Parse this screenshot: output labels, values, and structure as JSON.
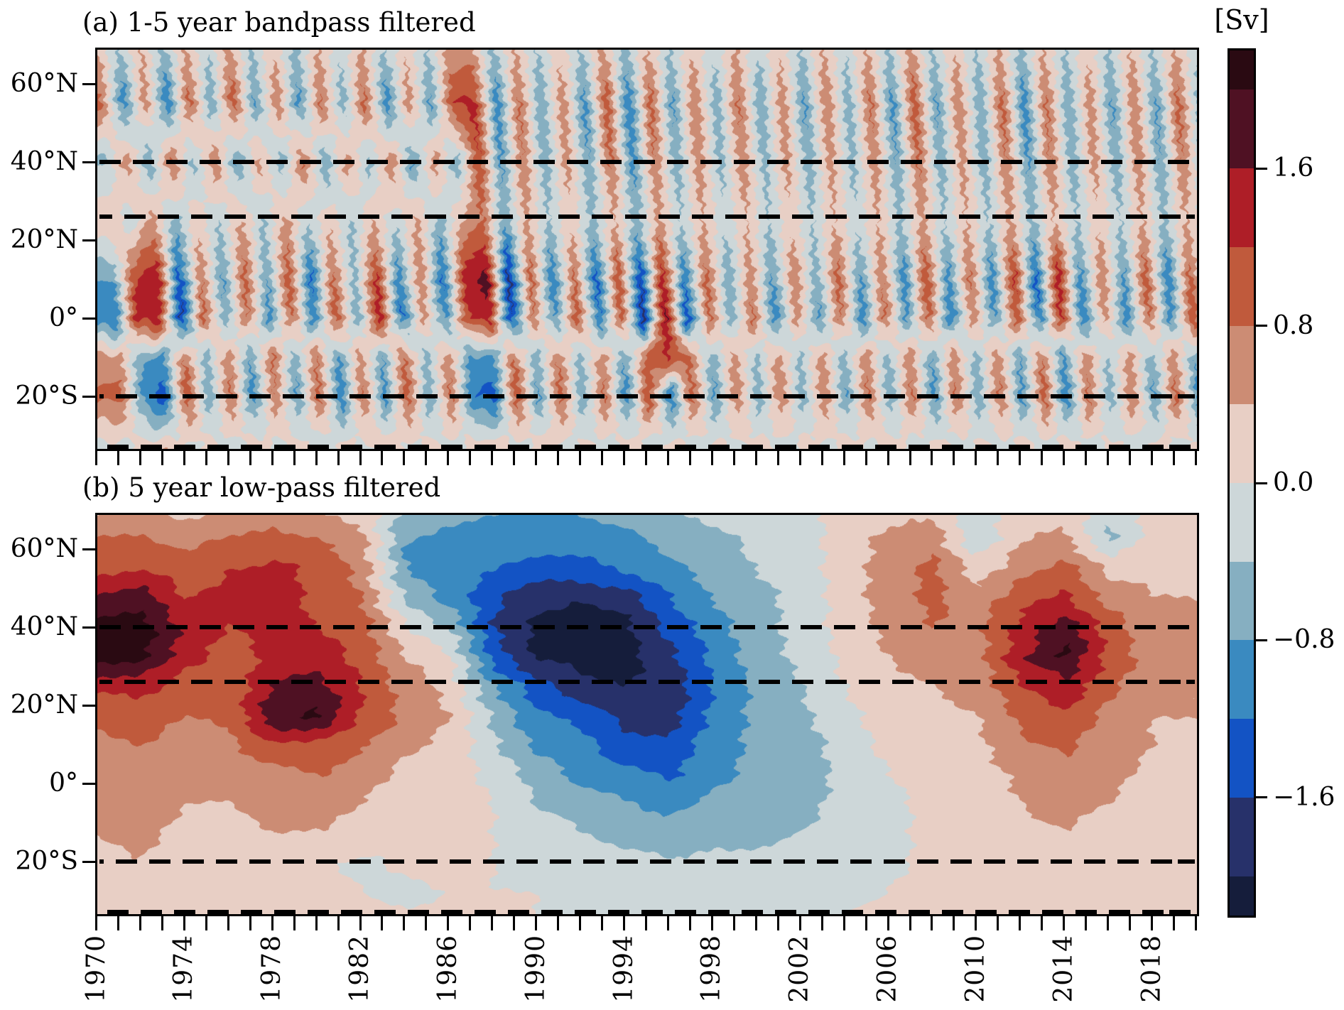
{
  "figure": {
    "panels": [
      {
        "id": "a",
        "title": "(a) 1-5 year bandpass filtered"
      },
      {
        "id": "b",
        "title": "(b) 5 year low-pass filtered"
      }
    ],
    "colorbar": {
      "title": "[Sv]",
      "tick_labels": [
        "1.6",
        "0.8",
        "0.0",
        "−0.8",
        "−1.6"
      ],
      "tick_values": [
        1.6,
        0.8,
        0.0,
        -0.8,
        -1.6
      ],
      "levels": [
        -2.2,
        -2.0,
        -1.6,
        -1.2,
        -0.8,
        -0.4,
        0.0,
        0.4,
        0.8,
        1.2,
        1.6,
        2.0,
        2.2
      ],
      "colors_low_to_high": [
        "#151d3b",
        "#27316a",
        "#1353c4",
        "#3a8ac0",
        "#86afc1",
        "#cdd7d9",
        "#e8cfc5",
        "#cc8c74",
        "#c05a3c",
        "#ae1e27",
        "#4f1123",
        "#2a0a12"
      ]
    },
    "y_axis": {
      "tick_labels": [
        "60°N",
        "40°N",
        "20°N",
        "0°",
        "20°S"
      ],
      "tick_latitudes": [
        60,
        40,
        20,
        0,
        -20
      ],
      "range_north_to_south": [
        69,
        -34
      ]
    },
    "x_axis": {
      "tick_labels": [
        "1970",
        "1974",
        "1978",
        "1982",
        "1986",
        "1990",
        "1994",
        "1998",
        "2002",
        "2006",
        "2010",
        "2014",
        "2018"
      ],
      "tick_years": [
        1970,
        1974,
        1978,
        1982,
        1986,
        1990,
        1994,
        1998,
        2002,
        2006,
        2010,
        2014,
        2018
      ],
      "minor_tick_interval_years": 1,
      "range": [
        1970,
        2020
      ]
    },
    "dashed_latitudes": [
      40,
      26,
      -20,
      -33
    ]
  },
  "chart_data": [
    {
      "type": "heatmap",
      "panel": "a",
      "title": "(a) 1-5 year bandpass filtered",
      "unit": "Sv",
      "x_range": [
        1970,
        2020
      ],
      "y_range_north_to_south": [
        69,
        -34
      ],
      "x_years": [
        1970,
        1971,
        1972,
        1973,
        1974,
        1975,
        1976,
        1977,
        1978,
        1979,
        1980,
        1981,
        1982,
        1983,
        1984,
        1985,
        1986,
        1987,
        1988,
        1989,
        1990,
        1991,
        1992,
        1993,
        1994,
        1995,
        1996,
        1997,
        1998,
        1999,
        2000,
        2001,
        2002,
        2003,
        2004,
        2005,
        2006,
        2007,
        2008,
        2009,
        2010,
        2011,
        2012,
        2013,
        2014,
        2015,
        2016,
        2017,
        2018,
        2019,
        2020
      ],
      "y_latitudes": [
        70,
        55,
        40,
        25,
        10,
        0,
        -10,
        -20,
        -35
      ],
      "values_by_year_column_north_to_south": [
        [
          0.3,
          0.9,
          -0.5,
          0.4,
          -0.8,
          -1.2,
          0.6,
          0.9,
          -0.3
        ],
        [
          -0.4,
          -1.1,
          0.7,
          -0.3,
          1.2,
          1.5,
          -0.7,
          -1.0,
          0.4
        ],
        [
          0.4,
          0.7,
          -0.8,
          0.6,
          1.6,
          1.3,
          -0.9,
          -1.4,
          0.5
        ],
        [
          -0.5,
          -1.2,
          0.9,
          -0.6,
          -1.5,
          -1.7,
          0.8,
          1.2,
          -0.4
        ],
        [
          0.4,
          1.0,
          -0.6,
          0.3,
          0.8,
          1.0,
          -0.6,
          -0.8,
          0.3
        ],
        [
          -0.3,
          -0.8,
          0.8,
          -0.4,
          -0.9,
          -0.7,
          0.7,
          0.9,
          -0.4
        ],
        [
          0.5,
          1.1,
          -0.9,
          0.5,
          1.0,
          0.8,
          -0.8,
          -1.1,
          0.5
        ],
        [
          -0.4,
          -0.9,
          0.6,
          -0.5,
          -0.8,
          -1.0,
          0.9,
          0.8,
          -0.3
        ],
        [
          0.3,
          0.8,
          -0.7,
          0.6,
          1.1,
          0.9,
          -0.7,
          -0.9,
          0.4
        ],
        [
          -0.5,
          -1.0,
          0.9,
          -0.4,
          -1.3,
          -1.1,
          0.8,
          1.0,
          -0.5
        ],
        [
          0.4,
          0.9,
          -0.8,
          0.3,
          0.9,
          1.1,
          -0.9,
          -1.2,
          0.4
        ],
        [
          -0.3,
          -0.7,
          0.7,
          -0.5,
          -0.6,
          -0.8,
          0.6,
          0.9,
          -0.3
        ],
        [
          0.4,
          1.0,
          -0.6,
          0.4,
          1.3,
          1.5,
          -0.8,
          -1.0,
          0.5
        ],
        [
          -0.4,
          -1.1,
          0.8,
          -0.3,
          -1.1,
          -1.3,
          0.9,
          1.1,
          -0.4
        ],
        [
          0.3,
          0.7,
          -0.9,
          0.5,
          0.8,
          0.6,
          -0.6,
          -0.8,
          0.3
        ],
        [
          -0.4,
          -0.9,
          0.7,
          -0.6,
          -1.3,
          -1.0,
          0.7,
          0.9,
          -0.4
        ],
        [
          0.5,
          1.2,
          -0.8,
          0.4,
          1.4,
          1.1,
          -0.9,
          -1.2,
          0.5
        ],
        [
          0.5,
          1.3,
          1.2,
          0.8,
          1.8,
          1.5,
          -1.0,
          -1.3,
          0.5
        ],
        [
          -0.5,
          -1.1,
          -0.9,
          -0.7,
          -1.8,
          -1.6,
          0.9,
          1.2,
          -0.5
        ],
        [
          0.4,
          0.9,
          0.8,
          0.5,
          1.0,
          0.8,
          -0.7,
          -0.9,
          0.4
        ],
        [
          -0.4,
          -0.8,
          -0.7,
          -0.4,
          -1.2,
          -0.9,
          0.8,
          1.0,
          -0.4
        ],
        [
          0.3,
          0.7,
          0.6,
          0.3,
          0.9,
          1.1,
          -0.6,
          -0.8,
          0.3
        ],
        [
          -0.4,
          -1.0,
          -0.8,
          -0.5,
          -1.4,
          -1.2,
          0.7,
          0.9,
          -0.4
        ],
        [
          0.5,
          1.1,
          0.9,
          0.4,
          1.2,
          1.0,
          -0.8,
          -1.1,
          0.5
        ],
        [
          -0.5,
          -1.2,
          -1.0,
          -0.6,
          -1.6,
          -1.8,
          0.9,
          1.2,
          -0.5
        ],
        [
          0.4,
          1.0,
          0.8,
          0.5,
          1.5,
          1.7,
          1.2,
          -1.3,
          0.5
        ],
        [
          -0.4,
          -0.9,
          -0.7,
          -0.4,
          -1.2,
          -1.5,
          0.8,
          1.0,
          -0.4
        ],
        [
          0.3,
          0.8,
          0.7,
          0.4,
          1.0,
          0.9,
          -0.7,
          -0.9,
          0.3
        ],
        [
          -0.3,
          -0.7,
          -0.6,
          -0.3,
          -0.8,
          -0.7,
          0.6,
          0.8,
          -0.3
        ],
        [
          0.4,
          0.9,
          0.7,
          0.4,
          0.7,
          0.9,
          -0.5,
          -0.7,
          0.3
        ],
        [
          -0.3,
          -0.8,
          -0.6,
          -0.4,
          -0.9,
          -1.1,
          0.6,
          0.8,
          -0.4
        ],
        [
          0.3,
          0.7,
          0.6,
          0.3,
          0.8,
          0.6,
          -0.5,
          -0.7,
          0.3
        ],
        [
          -0.4,
          -0.9,
          -0.7,
          -0.4,
          -0.7,
          -0.9,
          0.6,
          0.8,
          -0.3
        ],
        [
          0.4,
          0.8,
          0.6,
          0.4,
          1.0,
          0.8,
          -0.6,
          -0.9,
          0.4
        ],
        [
          -0.3,
          -0.7,
          -0.6,
          -0.3,
          -0.9,
          -1.1,
          0.7,
          0.9,
          -0.3
        ],
        [
          0.4,
          0.9,
          0.7,
          0.4,
          0.8,
          0.9,
          -0.6,
          -0.8,
          0.4
        ],
        [
          -0.4,
          -1.0,
          -0.8,
          -0.5,
          -1.1,
          -0.9,
          0.7,
          0.9,
          -0.4
        ],
        [
          0.5,
          1.1,
          0.9,
          0.5,
          1.2,
          1.0,
          -0.8,
          -1.0,
          0.4
        ],
        [
          -0.4,
          -0.9,
          -0.7,
          -0.4,
          -1.0,
          -1.2,
          0.7,
          0.9,
          -0.4
        ],
        [
          0.3,
          0.8,
          0.6,
          0.4,
          0.9,
          0.7,
          -0.6,
          -0.8,
          0.3
        ],
        [
          -0.4,
          -0.8,
          -0.7,
          -0.4,
          -1.1,
          -0.9,
          0.7,
          0.9,
          -0.4
        ],
        [
          0.4,
          1.0,
          0.8,
          0.5,
          1.3,
          1.1,
          -0.8,
          -1.0,
          0.4
        ],
        [
          -0.5,
          -1.1,
          -0.9,
          -0.5,
          -1.4,
          -1.2,
          0.8,
          1.1,
          -0.5
        ],
        [
          0.4,
          0.9,
          0.8,
          0.4,
          1.5,
          1.3,
          -0.9,
          -1.2,
          0.5
        ],
        [
          -0.4,
          -0.8,
          -0.7,
          -0.4,
          -1.0,
          -1.2,
          0.7,
          0.9,
          -0.4
        ],
        [
          0.3,
          0.7,
          0.6,
          0.3,
          0.8,
          0.6,
          -0.5,
          -0.7,
          0.3
        ],
        [
          -0.4,
          -0.9,
          -0.7,
          -0.4,
          -0.9,
          -1.1,
          0.6,
          0.8,
          -0.4
        ],
        [
          0.4,
          0.8,
          0.7,
          0.4,
          1.1,
          0.9,
          -0.7,
          -0.9,
          0.4
        ],
        [
          -0.4,
          -0.9,
          -0.8,
          -0.5,
          -1.2,
          -1.0,
          0.7,
          1.0,
          -0.4
        ],
        [
          0.4,
          1.0,
          0.8,
          0.4,
          1.0,
          1.2,
          -0.8,
          -1.0,
          0.4
        ],
        [
          -0.3,
          -0.7,
          -0.6,
          -0.3,
          -0.8,
          -0.6,
          0.5,
          0.7,
          -0.3
        ]
      ]
    },
    {
      "type": "heatmap",
      "panel": "b",
      "title": "(b) 5 year low-pass filtered",
      "unit": "Sv",
      "x_range": [
        1970,
        2020
      ],
      "y_range_north_to_south": [
        69,
        -34
      ],
      "x_years": [
        1970,
        1972,
        1974,
        1976,
        1978,
        1980,
        1982,
        1984,
        1986,
        1988,
        1990,
        1992,
        1994,
        1996,
        1998,
        2000,
        2002,
        2004,
        2006,
        2008,
        2010,
        2012,
        2014,
        2016,
        2018,
        2020
      ],
      "y_latitudes": [
        70,
        62.5,
        55,
        47.5,
        40,
        32.5,
        25,
        17.5,
        10,
        2.5,
        -5,
        -12.5,
        -20,
        -27.5,
        -35
      ],
      "values_by_year_column_north_to_south": [
        [
          0.3,
          0.8,
          1.1,
          1.7,
          2.1,
          2.1,
          1.3,
          0.9,
          0.7,
          0.6,
          0.5,
          0.4,
          0.3,
          0.2,
          0.2
        ],
        [
          0.4,
          0.9,
          1.2,
          1.8,
          2.2,
          2.1,
          1.4,
          1.0,
          0.8,
          0.6,
          0.6,
          0.5,
          0.4,
          0.3,
          0.2
        ],
        [
          0.3,
          0.7,
          0.9,
          1.2,
          1.5,
          1.4,
          1.0,
          0.8,
          0.6,
          0.5,
          0.4,
          0.3,
          0.2,
          0.1,
          0.1
        ],
        [
          0.4,
          0.8,
          1.2,
          1.4,
          1.2,
          1.0,
          0.9,
          0.9,
          0.7,
          0.5,
          0.4,
          0.3,
          0.2,
          0.1,
          0.1
        ],
        [
          0.5,
          1.0,
          1.3,
          1.4,
          1.3,
          1.3,
          1.6,
          1.9,
          1.1,
          0.7,
          0.5,
          0.4,
          0.3,
          0.2,
          0.2
        ],
        [
          0.4,
          0.8,
          1.1,
          1.1,
          1.2,
          1.4,
          1.8,
          2.1,
          1.2,
          0.8,
          0.6,
          0.4,
          0.1,
          0.1,
          0.1
        ],
        [
          0.2,
          0.5,
          0.7,
          0.8,
          1.0,
          1.1,
          1.2,
          1.2,
          0.8,
          0.6,
          0.4,
          0.3,
          -0.1,
          0.0,
          0.1
        ],
        [
          -0.5,
          -0.8,
          -0.8,
          -0.5,
          0.1,
          0.4,
          0.6,
          0.7,
          0.5,
          0.3,
          0.2,
          0.2,
          0.1,
          -0.1,
          0.1
        ],
        [
          -0.6,
          -1.0,
          -1.1,
          -0.9,
          -0.4,
          0.0,
          0.3,
          0.4,
          0.3,
          0.2,
          0.1,
          0.1,
          0.1,
          0.0,
          0.1
        ],
        [
          -0.7,
          -1.1,
          -1.2,
          -1.5,
          -1.6,
          -1.3,
          -0.8,
          -0.5,
          -0.3,
          -0.1,
          0.0,
          0.0,
          0.0,
          0.0,
          0.1
        ],
        [
          -0.8,
          -1.1,
          -1.3,
          -1.9,
          -2.1,
          -2.1,
          -1.5,
          -1.1,
          -0.9,
          -0.6,
          -0.4,
          -0.2,
          -0.1,
          0.0,
          0.0
        ],
        [
          -0.8,
          -1.0,
          -1.3,
          -2.0,
          -2.2,
          -2.2,
          -1.8,
          -1.3,
          -1.1,
          -0.9,
          -0.6,
          -0.4,
          -0.2,
          -0.1,
          -0.1
        ],
        [
          -0.6,
          -0.9,
          -1.2,
          -1.8,
          -2.1,
          -2.2,
          -2.0,
          -1.8,
          -1.4,
          -1.1,
          -0.8,
          -0.5,
          -0.3,
          -0.2,
          -0.1
        ],
        [
          -0.4,
          -0.7,
          -0.9,
          -1.2,
          -1.5,
          -1.7,
          -1.9,
          -1.8,
          -1.5,
          -1.3,
          -0.9,
          -0.6,
          -0.4,
          -0.2,
          -0.1
        ],
        [
          -0.3,
          -0.5,
          -0.6,
          -0.8,
          -1.0,
          -1.1,
          -1.2,
          -1.1,
          -1.0,
          -0.9,
          -0.7,
          -0.5,
          -0.3,
          -0.2,
          -0.1
        ],
        [
          -0.2,
          -0.3,
          -0.4,
          -0.5,
          -0.5,
          -0.6,
          -0.7,
          -0.7,
          -0.7,
          -0.7,
          -0.6,
          -0.5,
          -0.3,
          -0.2,
          -0.1
        ],
        [
          -0.1,
          -0.2,
          -0.2,
          -0.3,
          -0.3,
          -0.3,
          -0.4,
          -0.5,
          -0.6,
          -0.6,
          -0.5,
          -0.4,
          -0.3,
          -0.2,
          -0.1
        ],
        [
          0.1,
          0.2,
          0.2,
          0.2,
          0.2,
          0.1,
          0.0,
          -0.1,
          -0.2,
          -0.3,
          -0.3,
          -0.3,
          -0.2,
          -0.1,
          0.0
        ],
        [
          0.2,
          0.5,
          0.6,
          0.6,
          0.5,
          0.4,
          0.3,
          0.2,
          0.1,
          0.0,
          -0.1,
          -0.1,
          -0.1,
          0.0,
          0.1
        ],
        [
          0.3,
          0.7,
          0.9,
          0.9,
          0.8,
          0.6,
          0.4,
          0.3,
          0.2,
          0.2,
          0.1,
          0.1,
          0.1,
          0.1,
          0.1
        ],
        [
          -0.2,
          -0.4,
          0.2,
          0.6,
          0.7,
          0.6,
          0.5,
          0.4,
          0.3,
          0.2,
          0.2,
          0.1,
          0.1,
          0.1,
          0.1
        ],
        [
          0.2,
          0.4,
          0.7,
          1.0,
          1.3,
          1.5,
          1.2,
          0.9,
          0.7,
          0.5,
          0.4,
          0.3,
          0.2,
          0.2,
          0.1
        ],
        [
          0.3,
          0.5,
          0.9,
          1.3,
          1.9,
          2.1,
          1.5,
          1.1,
          0.9,
          0.7,
          0.5,
          0.4,
          0.3,
          0.2,
          0.2
        ],
        [
          -0.3,
          -0.5,
          0.3,
          0.7,
          1.0,
          1.1,
          0.9,
          0.7,
          0.6,
          0.5,
          0.4,
          0.3,
          0.2,
          0.2,
          0.1
        ],
        [
          0.1,
          0.2,
          0.3,
          0.4,
          0.5,
          0.6,
          0.5,
          0.4,
          0.4,
          0.3,
          0.3,
          0.2,
          0.2,
          0.1,
          0.1
        ],
        [
          0.2,
          0.3,
          0.3,
          0.4,
          0.4,
          0.5,
          0.4,
          0.4,
          0.3,
          0.3,
          0.2,
          0.2,
          0.2,
          0.1,
          0.1
        ]
      ]
    }
  ]
}
